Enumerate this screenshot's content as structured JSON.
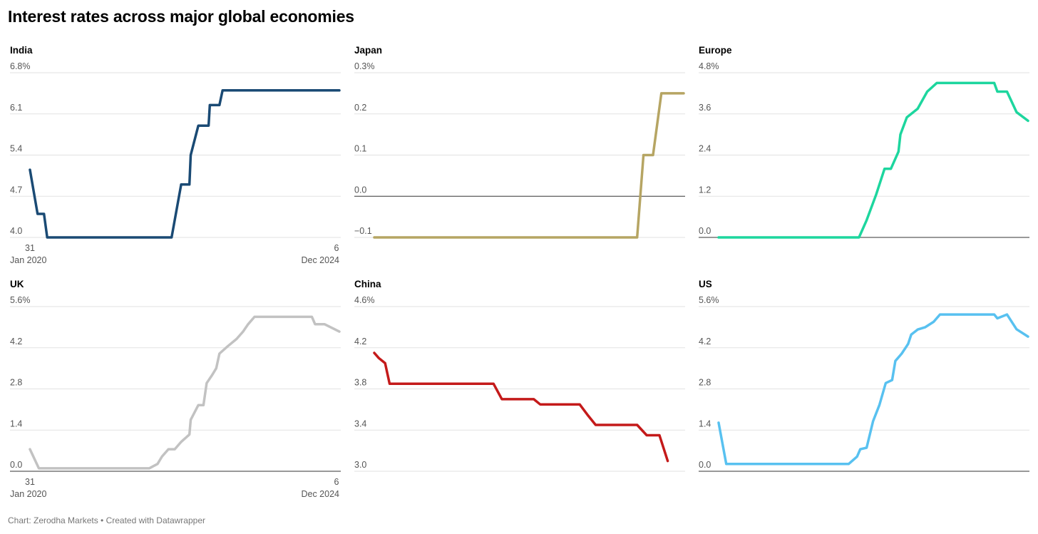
{
  "title": "Interest rates across major global economies",
  "footer": "Chart: Zerodha Markets • Created with Datawrapper",
  "chart_data": [
    {
      "type": "line",
      "title": "India",
      "color": "#1a4a74",
      "ylim": [
        4.0,
        6.8
      ],
      "yticks": [
        4.0,
        4.7,
        5.4,
        6.1,
        6.8
      ],
      "ytick_labels": [
        "4.0",
        "4.7",
        "5.4",
        "6.1",
        "6.8%"
      ],
      "xlim": [
        2020.08,
        2024.93
      ],
      "xtick_labels": [
        [
          "31",
          "Jan 2020"
        ],
        [
          "6",
          "Dec 2024"
        ]
      ],
      "points": [
        [
          2020.08,
          5.15
        ],
        [
          2020.2,
          4.4
        ],
        [
          2020.3,
          4.4
        ],
        [
          2020.35,
          4.0
        ],
        [
          2022.3,
          4.0
        ],
        [
          2022.45,
          4.9
        ],
        [
          2022.58,
          4.9
        ],
        [
          2022.6,
          5.4
        ],
        [
          2022.72,
          5.9
        ],
        [
          2022.88,
          5.9
        ],
        [
          2022.9,
          6.25
        ],
        [
          2023.05,
          6.25
        ],
        [
          2023.1,
          6.5
        ],
        [
          2024.93,
          6.5
        ]
      ]
    },
    {
      "type": "line",
      "title": "Japan",
      "color": "#b6a563",
      "ylim": [
        -0.1,
        0.3
      ],
      "yticks": [
        -0.1,
        0.0,
        0.1,
        0.2,
        0.3
      ],
      "ytick_labels": [
        "−0.1",
        "0.0",
        "0.1",
        "0.2",
        "0.3%"
      ],
      "zero_line": true,
      "xlim": [
        2020.08,
        2024.93
      ],
      "points": [
        [
          2020.08,
          -0.1
        ],
        [
          2024.2,
          -0.1
        ],
        [
          2024.3,
          0.1
        ],
        [
          2024.45,
          0.1
        ],
        [
          2024.58,
          0.25
        ],
        [
          2024.93,
          0.25
        ]
      ]
    },
    {
      "type": "line",
      "title": "Europe",
      "color": "#1dd69e",
      "ylim": [
        0.0,
        4.8
      ],
      "yticks": [
        0.0,
        1.2,
        2.4,
        3.6,
        4.8
      ],
      "ytick_labels": [
        "0.0",
        "1.2",
        "2.4",
        "3.6",
        "4.8%"
      ],
      "zero_line": true,
      "xlim": [
        2020.08,
        2024.93
      ],
      "points": [
        [
          2020.08,
          0.0
        ],
        [
          2022.28,
          0.0
        ],
        [
          2022.4,
          0.5
        ],
        [
          2022.55,
          1.25
        ],
        [
          2022.68,
          2.0
        ],
        [
          2022.78,
          2.0
        ],
        [
          2022.9,
          2.5
        ],
        [
          2022.93,
          3.0
        ],
        [
          2023.03,
          3.5
        ],
        [
          2023.2,
          3.75
        ],
        [
          2023.35,
          4.25
        ],
        [
          2023.5,
          4.5
        ],
        [
          2024.4,
          4.5
        ],
        [
          2024.45,
          4.25
        ],
        [
          2024.6,
          4.25
        ],
        [
          2024.75,
          3.65
        ],
        [
          2024.93,
          3.4
        ]
      ]
    },
    {
      "type": "line",
      "title": "UK",
      "color": "#c2c2c2",
      "ylim": [
        0.0,
        5.6
      ],
      "yticks": [
        0.0,
        1.4,
        2.8,
        4.2,
        5.6
      ],
      "ytick_labels": [
        "0.0",
        "1.4",
        "2.8",
        "4.2",
        "5.6%"
      ],
      "zero_line": true,
      "xlim": [
        2020.08,
        2024.93
      ],
      "xtick_labels": [
        [
          "31",
          "Jan 2020"
        ],
        [
          "6",
          "Dec 2024"
        ]
      ],
      "points": [
        [
          2020.08,
          0.75
        ],
        [
          2020.22,
          0.1
        ],
        [
          2021.95,
          0.1
        ],
        [
          2022.08,
          0.25
        ],
        [
          2022.15,
          0.5
        ],
        [
          2022.25,
          0.75
        ],
        [
          2022.35,
          0.75
        ],
        [
          2022.45,
          1.0
        ],
        [
          2022.58,
          1.25
        ],
        [
          2022.6,
          1.75
        ],
        [
          2022.72,
          2.25
        ],
        [
          2022.8,
          2.25
        ],
        [
          2022.85,
          3.0
        ],
        [
          2022.93,
          3.25
        ],
        [
          2023.0,
          3.5
        ],
        [
          2023.05,
          4.0
        ],
        [
          2023.18,
          4.25
        ],
        [
          2023.32,
          4.5
        ],
        [
          2023.42,
          4.75
        ],
        [
          2023.5,
          5.0
        ],
        [
          2023.6,
          5.25
        ],
        [
          2024.5,
          5.25
        ],
        [
          2024.55,
          5.0
        ],
        [
          2024.7,
          5.0
        ],
        [
          2024.93,
          4.75
        ]
      ]
    },
    {
      "type": "line",
      "title": "China",
      "color": "#c41a1a",
      "ylim": [
        3.0,
        4.6
      ],
      "yticks": [
        3.0,
        3.4,
        3.8,
        4.2,
        4.6
      ],
      "ytick_labels": [
        "3.0",
        "3.4",
        "3.8",
        "4.2",
        "4.6%"
      ],
      "xlim": [
        2020.08,
        2024.93
      ],
      "points": [
        [
          2020.08,
          4.15
        ],
        [
          2020.15,
          4.1
        ],
        [
          2020.25,
          4.05
        ],
        [
          2020.32,
          3.85
        ],
        [
          2021.95,
          3.85
        ],
        [
          2022.08,
          3.7
        ],
        [
          2022.58,
          3.7
        ],
        [
          2022.68,
          3.65
        ],
        [
          2023.3,
          3.65
        ],
        [
          2023.42,
          3.55
        ],
        [
          2023.55,
          3.45
        ],
        [
          2024.2,
          3.45
        ],
        [
          2024.35,
          3.35
        ],
        [
          2024.55,
          3.35
        ],
        [
          2024.68,
          3.1
        ]
      ]
    },
    {
      "type": "line",
      "title": "US",
      "color": "#58c1f0",
      "ylim": [
        0.0,
        5.6
      ],
      "yticks": [
        0.0,
        1.4,
        2.8,
        4.2,
        5.6
      ],
      "ytick_labels": [
        "0.0",
        "1.4",
        "2.8",
        "4.2",
        "5.6%"
      ],
      "zero_line": true,
      "xlim": [
        2020.08,
        2024.93
      ],
      "points": [
        [
          2020.08,
          1.65
        ],
        [
          2020.2,
          0.25
        ],
        [
          2022.12,
          0.25
        ],
        [
          2022.25,
          0.5
        ],
        [
          2022.3,
          0.75
        ],
        [
          2022.4,
          0.8
        ],
        [
          2022.5,
          1.7
        ],
        [
          2022.6,
          2.25
        ],
        [
          2022.7,
          3.0
        ],
        [
          2022.8,
          3.1
        ],
        [
          2022.85,
          3.75
        ],
        [
          2022.95,
          4.0
        ],
        [
          2023.05,
          4.33
        ],
        [
          2023.1,
          4.65
        ],
        [
          2023.2,
          4.82
        ],
        [
          2023.32,
          4.9
        ],
        [
          2023.45,
          5.08
        ],
        [
          2023.55,
          5.33
        ],
        [
          2024.4,
          5.33
        ],
        [
          2024.45,
          5.2
        ],
        [
          2024.6,
          5.33
        ],
        [
          2024.75,
          4.83
        ],
        [
          2024.93,
          4.58
        ]
      ]
    }
  ]
}
